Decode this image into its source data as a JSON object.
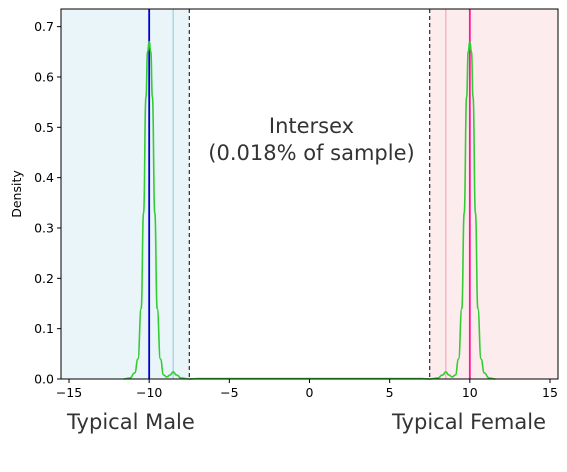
{
  "chart_data": {
    "type": "line",
    "title": "",
    "xlabel": "",
    "ylabel": "Density",
    "xlim": [
      -15.5,
      15.5
    ],
    "ylim": [
      0,
      0.735
    ],
    "xticks": [
      -15,
      -10,
      -5,
      0,
      5,
      10,
      15
    ],
    "yticks": [
      0.0,
      0.1,
      0.2,
      0.3,
      0.4,
      0.5,
      0.6,
      0.7
    ],
    "grid": false,
    "shaded_regions": [
      {
        "x_range": [
          -15.5,
          -7.5
        ],
        "color": "#eaf5fa"
      },
      {
        "x_range": [
          7.5,
          15.5
        ],
        "color": "#fdeced"
      }
    ],
    "vertical_lines": [
      {
        "x": -10,
        "color": "#0000cc",
        "style": "solid"
      },
      {
        "x": -8.5,
        "color": "#a8d8e8",
        "style": "solid"
      },
      {
        "x": -7.5,
        "color": "#000000",
        "style": "dashed"
      },
      {
        "x": 7.5,
        "color": "#000000",
        "style": "dashed"
      },
      {
        "x": 8.5,
        "color": "#f4b6c2",
        "style": "solid"
      },
      {
        "x": 10,
        "color": "#ff1493",
        "style": "solid"
      }
    ],
    "density_curve": {
      "color": "#33cc33",
      "x": [
        -11.6,
        -11.2,
        -10.9,
        -10.7,
        -10.5,
        -10.35,
        -10.2,
        -10.1,
        -10.0,
        -9.9,
        -9.8,
        -9.65,
        -9.5,
        -9.3,
        -9.1,
        -8.9,
        -8.7,
        -8.5,
        -8.3,
        -8.0,
        -7.5,
        -7.0,
        0,
        7.0,
        7.5,
        8.0,
        8.3,
        8.5,
        8.7,
        8.9,
        9.1,
        9.3,
        9.5,
        9.65,
        9.8,
        9.9,
        10.0,
        10.1,
        10.2,
        10.35,
        10.5,
        10.7,
        10.9,
        11.2,
        11.6
      ],
      "y": [
        0.0,
        0.002,
        0.012,
        0.04,
        0.14,
        0.33,
        0.56,
        0.65,
        0.67,
        0.65,
        0.56,
        0.33,
        0.14,
        0.04,
        0.008,
        0.004,
        0.008,
        0.014,
        0.008,
        0.002,
        0.0,
        0.001,
        0.001,
        0.001,
        0.0,
        0.002,
        0.008,
        0.014,
        0.008,
        0.004,
        0.008,
        0.04,
        0.14,
        0.33,
        0.56,
        0.65,
        0.67,
        0.65,
        0.56,
        0.33,
        0.14,
        0.04,
        0.012,
        0.002,
        0.0
      ]
    },
    "annotations": [
      {
        "text": "Intersex",
        "x": 0,
        "y": 0.5
      },
      {
        "text": "(0.018% of sample)",
        "x": 0,
        "y": 0.45
      }
    ],
    "bottom_labels": {
      "left": "Typical Male",
      "right": "Typical Female"
    }
  }
}
